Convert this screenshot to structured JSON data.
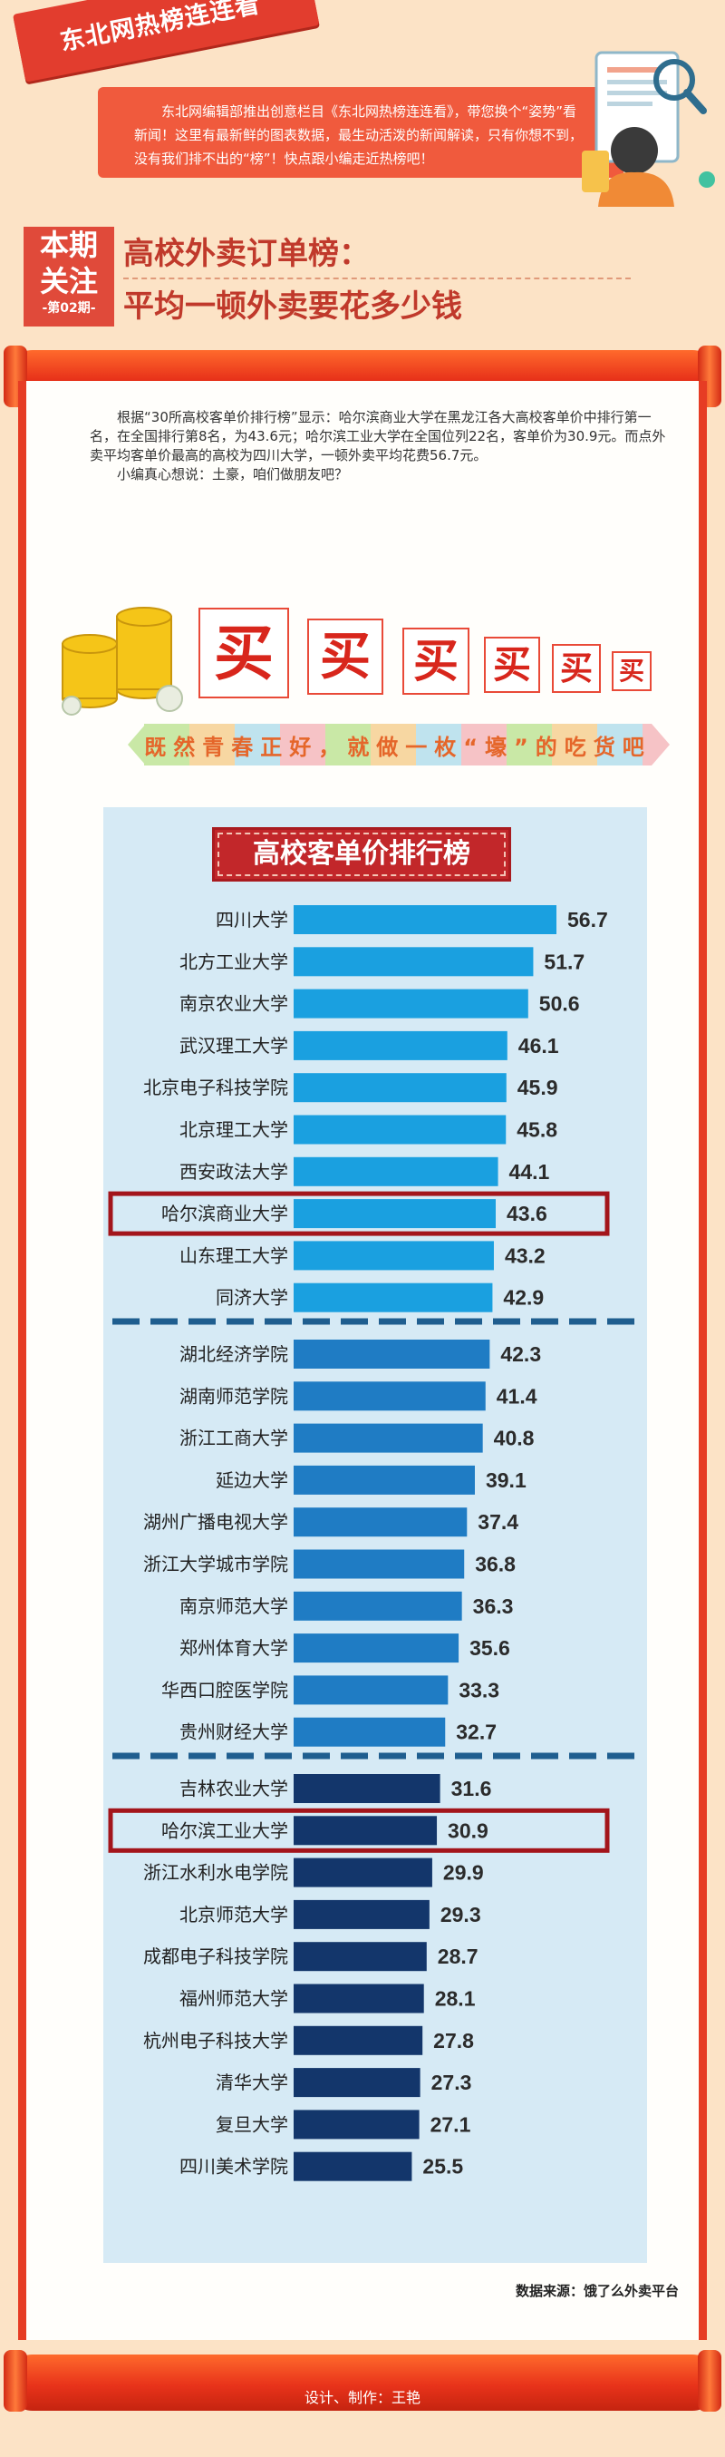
{
  "header": {
    "column_name": "东北网热榜连连看",
    "intro": "东北网编辑部推出创意栏目《东北网热榜连连看》，带您换个“姿势”看新闻！这里有最新鲜的图表数据，最生动活泼的新闻解读，只有你想不到，没有我们排不出的“榜”！快点跟小编走近热榜吧！"
  },
  "topic": {
    "badge_line1": "本期",
    "badge_line2": "关注",
    "badge_issue": "-第02期-",
    "title_line1": "高校外卖订单榜：",
    "title_line2": "平均一顿外卖要花多少钱"
  },
  "article": {
    "paragraph1": "根据“30所高校客单价排行榜”显示：哈尔滨商业大学在黑龙江各大高校客单价中排行第一名，在全国排行第8名，为43.6元；哈尔滨工业大学在全国位列22名，客单价为30.9元。而点外卖平均客单价最高的高校为四川大学，一顿外卖平均花费56.7元。",
    "paragraph2": "小编真心想说：土豪，咱们做朋友吧？"
  },
  "banner": {
    "buy_chars": [
      "买",
      "买",
      "买",
      "买",
      "买",
      "买"
    ],
    "slogan": "既然青春正好，就做一枚“壕”的吃货吧"
  },
  "chart_data": {
    "type": "bar",
    "orientation": "horizontal",
    "title": "高校客单价排行榜",
    "categories": [
      "四川大学",
      "北方工业大学",
      "南京农业大学",
      "武汉理工大学",
      "北京电子科技学院",
      "北京理工大学",
      "西安政法大学",
      "哈尔滨商业大学",
      "山东理工大学",
      "同济大学",
      "湖北经济学院",
      "湖南师范学院",
      "浙江工商大学",
      "延边大学",
      "湖州广播电视大学",
      "浙江大学城市学院",
      "南京师范大学",
      "郑州体育大学",
      "华西口腔医学院",
      "贵州财经大学",
      "吉林农业大学",
      "哈尔滨工业大学",
      "浙江水利水电学院",
      "北京师范大学",
      "成都电子科技学院",
      "福州师范大学",
      "杭州电子科技大学",
      "清华大学",
      "复旦大学",
      "四川美术学院"
    ],
    "values": [
      56.7,
      51.7,
      50.6,
      46.1,
      45.9,
      45.8,
      44.1,
      43.6,
      43.2,
      42.9,
      42.3,
      41.4,
      40.8,
      39.1,
      37.4,
      36.8,
      36.3,
      35.6,
      33.3,
      32.7,
      31.6,
      30.9,
      29.9,
      29.3,
      28.7,
      28.1,
      27.8,
      27.3,
      27.1,
      25.5
    ],
    "value_labels": [
      "56.7",
      "51.7",
      "50.6",
      "46.1",
      "45.9",
      "45.8",
      "44.1",
      "43.6",
      "43.2",
      "42.9",
      "42.3",
      "41.4",
      "40.8",
      "39.1",
      "37.4",
      "36.8",
      "36.3",
      "35.6",
      "33.3",
      "32.7",
      "31.6",
      "30.9",
      "29.9",
      "29.3",
      "28.7",
      "28.1",
      "27.8",
      "27.3",
      "27.1",
      "25.5"
    ],
    "highlighted": [
      "哈尔滨商业大学",
      "哈尔滨工业大学"
    ],
    "group_breaks_after": [
      10,
      20
    ],
    "group_colors": [
      "#1aa0e0",
      "#1f7cc4",
      "#13366b"
    ],
    "highlight_color": "#a3151b",
    "xlim": [
      0,
      60
    ],
    "grid": false
  },
  "footer": {
    "source": "数据来源：饿了么外卖平台",
    "credit": "设计、制作：王艳"
  }
}
